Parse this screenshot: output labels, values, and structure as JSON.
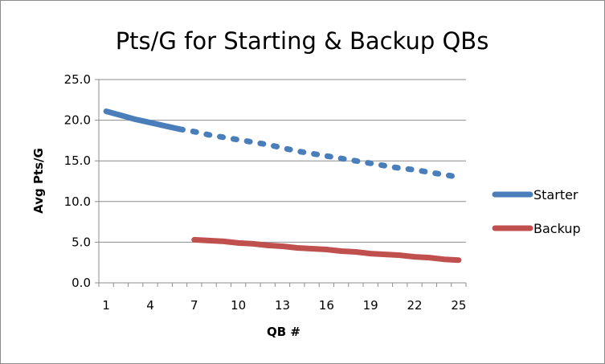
{
  "chart_data": {
    "type": "line",
    "title": "Pts/G for Starting & Backup QBs",
    "xlabel": "QB #",
    "ylabel": "Avg Pts/G",
    "x": [
      1,
      2,
      3,
      4,
      5,
      6,
      7,
      8,
      9,
      10,
      11,
      12,
      13,
      14,
      15,
      16,
      17,
      18,
      19,
      20,
      21,
      22,
      23,
      24,
      25
    ],
    "xticks": [
      1,
      4,
      7,
      10,
      13,
      16,
      19,
      22,
      25
    ],
    "xtick_labels": [
      "1",
      "4",
      "7",
      "10",
      "13",
      "16",
      "19",
      "22",
      "25"
    ],
    "yticks": [
      0,
      5,
      10,
      15,
      20,
      25
    ],
    "ytick_labels": [
      "0.0",
      "5.0",
      "10.0",
      "15.0",
      "20.0",
      "25.0"
    ],
    "ylim": [
      0,
      25
    ],
    "grid": "horizontal",
    "legend_position": "right",
    "series": [
      {
        "name": "Starter",
        "color": "#4a7ebb",
        "solid_until_x": 6,
        "values": [
          21.1,
          20.6,
          20.1,
          19.7,
          19.3,
          18.9,
          18.6,
          18.2,
          17.9,
          17.6,
          17.3,
          17.0,
          16.6,
          16.2,
          15.9,
          15.6,
          15.3,
          15.0,
          14.7,
          14.4,
          14.1,
          13.9,
          13.6,
          13.3,
          13.0
        ]
      },
      {
        "name": "Backup",
        "color": "#c0504d",
        "values": [
          null,
          null,
          null,
          null,
          null,
          null,
          5.3,
          5.2,
          5.1,
          4.9,
          4.8,
          4.6,
          4.5,
          4.3,
          4.2,
          4.1,
          3.9,
          3.8,
          3.6,
          3.5,
          3.4,
          3.2,
          3.1,
          2.9,
          2.8
        ]
      }
    ]
  }
}
